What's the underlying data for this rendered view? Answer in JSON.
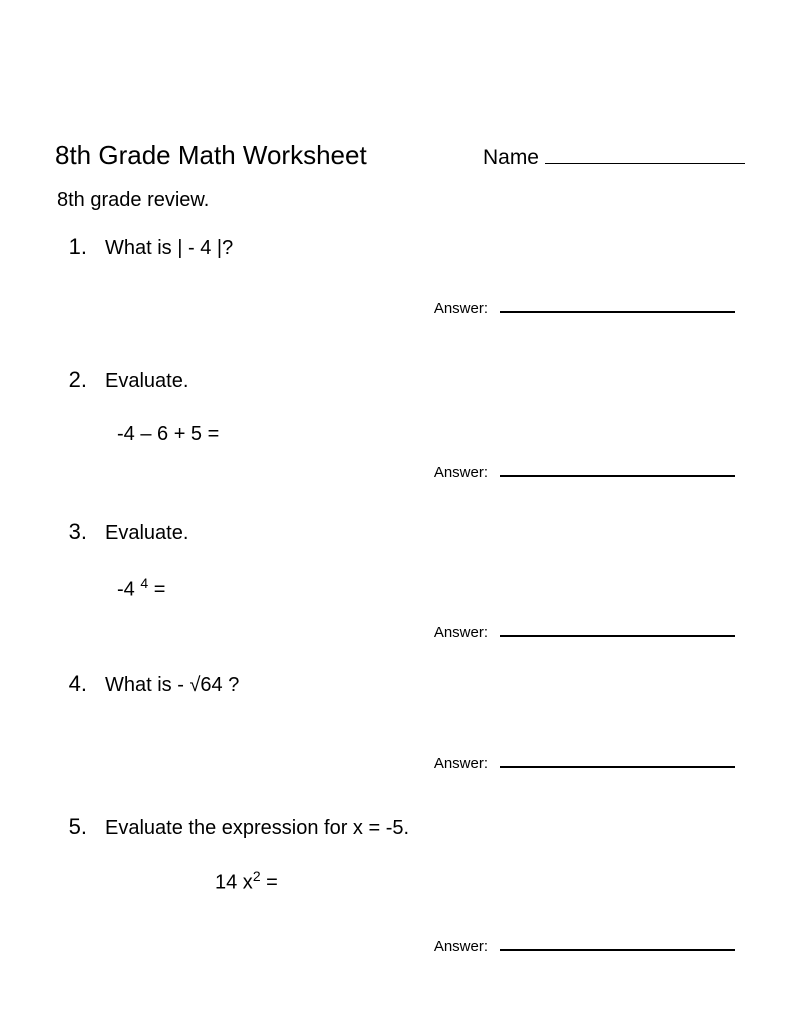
{
  "header": {
    "title": "8th Grade Math Worksheet",
    "name_label": "Name"
  },
  "subtitle": "8th grade review.",
  "answer_label": "Answer:",
  "problems": [
    {
      "number": "1.",
      "question": "What is |  - 4 |?",
      "expression": ""
    },
    {
      "number": "2.",
      "question": "Evaluate.",
      "expression": "-4 – 6 + 5 ="
    },
    {
      "number": "3.",
      "question": "Evaluate.",
      "expression_html": "-4 <sup>4</sup> ="
    },
    {
      "number": "4.",
      "question": "What is - √64 ?",
      "expression": ""
    },
    {
      "number": "5.",
      "question": "Evaluate the expression for x = -5.",
      "expression_html": "14 x<sup>2</sup>  ="
    }
  ]
}
